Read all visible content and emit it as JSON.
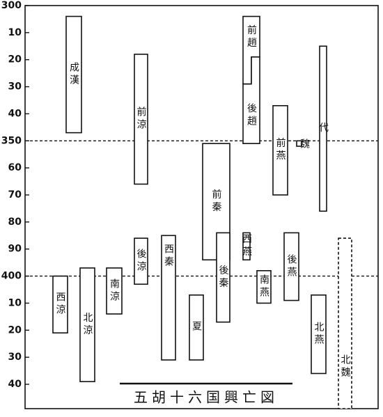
{
  "chart_data": {
    "type": "timeline",
    "title": "五胡十六国興亡図",
    "ylim": [
      300,
      449
    ],
    "yticks": [
      300,
      {
        "value": 310,
        "label": "10"
      },
      {
        "value": 320,
        "label": "20"
      },
      {
        "value": 330,
        "label": "30"
      },
      {
        "value": 340,
        "label": "40"
      },
      350,
      {
        "value": 360,
        "label": "60"
      },
      {
        "value": 370,
        "label": "70"
      },
      {
        "value": 380,
        "label": "80"
      },
      {
        "value": 390,
        "label": "90"
      },
      400,
      {
        "value": 410,
        "label": "10"
      },
      {
        "value": 420,
        "label": "20"
      },
      {
        "value": 430,
        "label": "30"
      },
      {
        "value": 440,
        "label": "40"
      }
    ],
    "reference_lines": [
      350,
      400
    ],
    "bars": [
      {
        "name": "成漢",
        "start": 304,
        "end": 347
      },
      {
        "name": "前涼",
        "start": 318,
        "end": 366
      },
      {
        "name": "前趙",
        "start": 304,
        "end": 329
      },
      {
        "name": "後趙",
        "start": 319,
        "end": 351
      },
      {
        "name": "前燕",
        "start": 337,
        "end": 370
      },
      {
        "name": "代",
        "start": 315,
        "end": 376
      },
      {
        "name": "魏",
        "start": 350,
        "end": 352
      },
      {
        "name": "前秦",
        "start": 351,
        "end": 394
      },
      {
        "name": "西燕",
        "start": 384,
        "end": 394
      },
      {
        "name": "後涼",
        "start": 386,
        "end": 403
      },
      {
        "name": "西秦",
        "start": 385,
        "end": 431
      },
      {
        "name": "後秦",
        "start": 384,
        "end": 417
      },
      {
        "name": "後燕",
        "start": 384,
        "end": 409
      },
      {
        "name": "北魏",
        "start": 386,
        "end": null
      },
      {
        "name": "西涼",
        "start": 400,
        "end": 421
      },
      {
        "name": "北涼",
        "start": 397,
        "end": 439
      },
      {
        "name": "南涼",
        "start": 397,
        "end": 414
      },
      {
        "name": "夏",
        "start": 407,
        "end": 431
      },
      {
        "name": "南燕",
        "start": 398,
        "end": 410
      },
      {
        "name": "北燕",
        "start": 407,
        "end": 436
      }
    ]
  }
}
